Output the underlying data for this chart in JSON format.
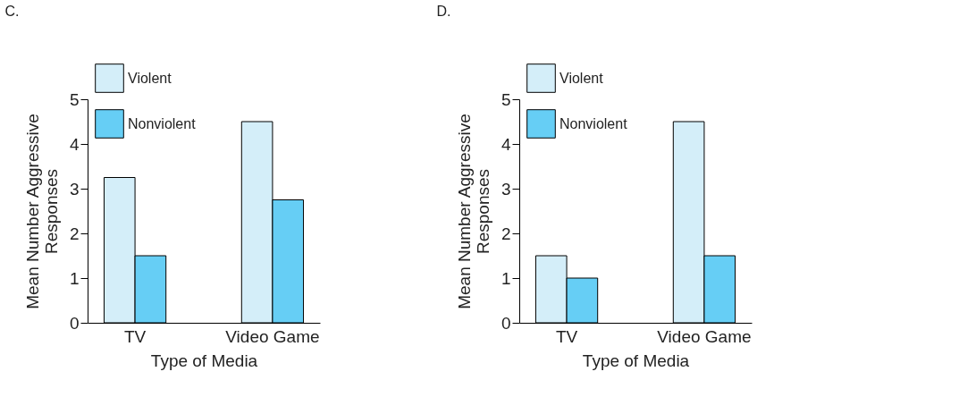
{
  "chart_data": [
    {
      "type": "bar",
      "title": "C.",
      "xlabel": "Type of Media",
      "ylabel": "Mean Number Aggressive Responses",
      "categories": [
        "TV",
        "Video Game"
      ],
      "series": [
        {
          "name": "Violent",
          "color": "#d4eef9",
          "values": [
            3.25,
            4.5
          ]
        },
        {
          "name": "Nonviolent",
          "color": "#66cef5",
          "values": [
            1.5,
            2.75
          ]
        }
      ],
      "ylim": [
        0,
        5
      ],
      "yticks": [
        0,
        1,
        2,
        3,
        4,
        5
      ],
      "grid": false,
      "legend": "top left"
    },
    {
      "type": "bar",
      "title": "D.",
      "xlabel": "Type of Media",
      "ylabel": "Mean Number Aggressive Responses",
      "categories": [
        "TV",
        "Video Game"
      ],
      "series": [
        {
          "name": "Violent",
          "color": "#d4eef9",
          "values": [
            1.5,
            4.5
          ]
        },
        {
          "name": "Nonviolent",
          "color": "#66cef5",
          "values": [
            1.0,
            1.5
          ]
        }
      ],
      "ylim": [
        0,
        5
      ],
      "yticks": [
        0,
        1,
        2,
        3,
        4,
        5
      ],
      "grid": false,
      "legend": "top left"
    }
  ]
}
